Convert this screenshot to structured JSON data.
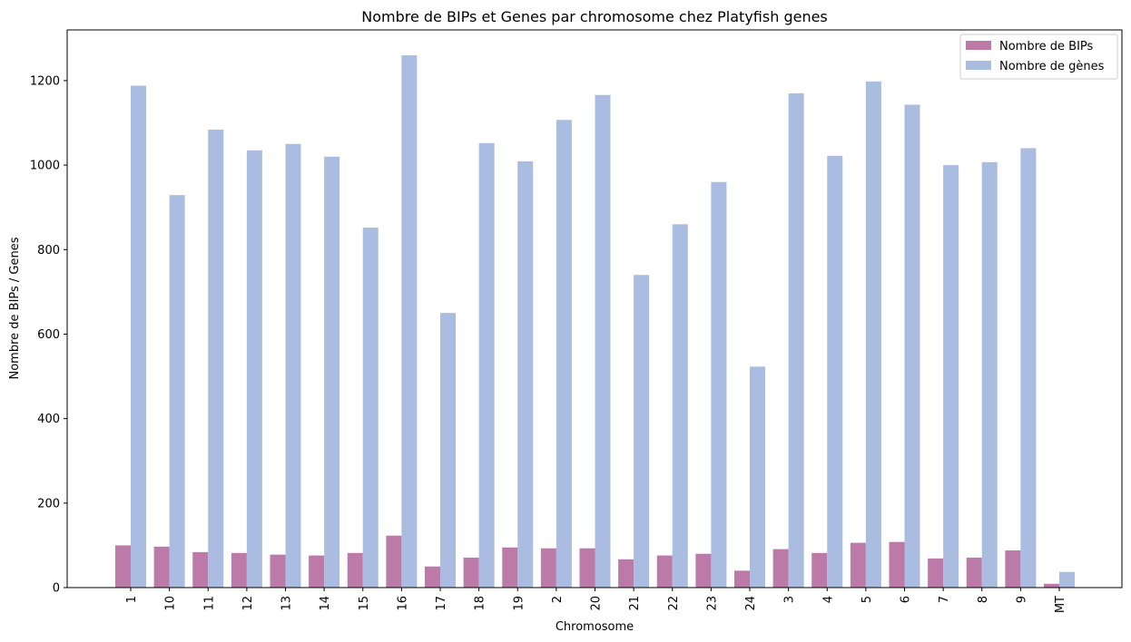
{
  "chart_data": {
    "type": "bar",
    "title": "Nombre de BIPs et Genes par chromosome chez Platyfish genes",
    "xlabel": "Chromosome",
    "ylabel": "Nombre de BIPs / Genes",
    "ylim": [
      0,
      1320
    ],
    "yticks": [
      0,
      200,
      400,
      600,
      800,
      1000,
      1200
    ],
    "grid": false,
    "legend_position": "top-right",
    "categories": [
      "1",
      "10",
      "11",
      "12",
      "13",
      "14",
      "15",
      "16",
      "17",
      "18",
      "19",
      "2",
      "20",
      "21",
      "22",
      "23",
      "24",
      "3",
      "4",
      "5",
      "6",
      "7",
      "8",
      "9",
      "MT"
    ],
    "series": [
      {
        "name": "Nombre de BIPs",
        "color": "#bb7aa8",
        "values": [
          100,
          97,
          84,
          82,
          78,
          76,
          82,
          123,
          50,
          71,
          95,
          93,
          93,
          67,
          76,
          80,
          40,
          91,
          82,
          106,
          108,
          69,
          71,
          88,
          9
        ]
      },
      {
        "name": "Nombre de gènes",
        "color": "#aabcdf",
        "values": [
          1188,
          929,
          1084,
          1035,
          1050,
          1020,
          852,
          1260,
          650,
          1052,
          1009,
          1107,
          1166,
          740,
          860,
          960,
          523,
          1170,
          1022,
          1198,
          1143,
          1000,
          1007,
          1040,
          37
        ]
      }
    ]
  }
}
